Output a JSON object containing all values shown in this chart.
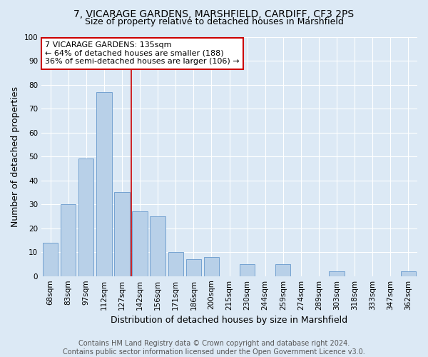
{
  "title_line1": "7, VICARAGE GARDENS, MARSHFIELD, CARDIFF, CF3 2PS",
  "title_line2": "Size of property relative to detached houses in Marshfield",
  "xlabel": "Distribution of detached houses by size in Marshfield",
  "ylabel": "Number of detached properties",
  "categories": [
    "68sqm",
    "83sqm",
    "97sqm",
    "112sqm",
    "127sqm",
    "142sqm",
    "156sqm",
    "171sqm",
    "186sqm",
    "200sqm",
    "215sqm",
    "230sqm",
    "244sqm",
    "259sqm",
    "274sqm",
    "289sqm",
    "303sqm",
    "318sqm",
    "333sqm",
    "347sqm",
    "362sqm"
  ],
  "values": [
    14,
    30,
    49,
    77,
    35,
    27,
    25,
    10,
    7,
    8,
    0,
    5,
    0,
    5,
    0,
    0,
    2,
    0,
    0,
    0,
    2
  ],
  "bar_color": "#b8d0e8",
  "bar_edge_color": "#6699cc",
  "vline_x_index": 4.5,
  "vline_color": "#cc0000",
  "annotation_text": "7 VICARAGE GARDENS: 135sqm\n← 64% of detached houses are smaller (188)\n36% of semi-detached houses are larger (106) →",
  "annotation_box_color": "#ffffff",
  "annotation_box_edge": "#cc0000",
  "ylim": [
    0,
    100
  ],
  "yticks": [
    0,
    10,
    20,
    30,
    40,
    50,
    60,
    70,
    80,
    90,
    100
  ],
  "footer": "Contains HM Land Registry data © Crown copyright and database right 2024.\nContains public sector information licensed under the Open Government Licence v3.0.",
  "bg_color": "#dce9f5",
  "plot_bg_color": "#dce9f5",
  "title_fontsize": 10,
  "subtitle_fontsize": 9,
  "axis_label_fontsize": 9,
  "tick_fontsize": 7.5,
  "footer_fontsize": 7,
  "annotation_fontsize": 8
}
